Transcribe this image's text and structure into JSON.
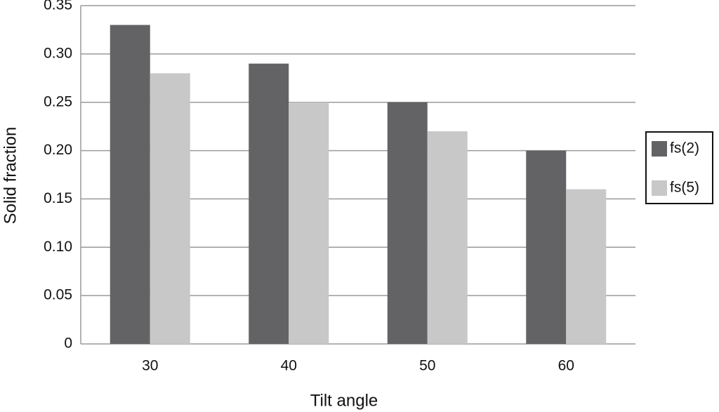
{
  "chart_data": {
    "type": "bar",
    "x_label": "Tilt angle",
    "y_label": "Solid fraction",
    "categories": [
      "30",
      "40",
      "50",
      "60"
    ],
    "series": [
      {
        "name": "fs(2)",
        "color": "#636366",
        "values": [
          0.33,
          0.29,
          0.25,
          0.2
        ]
      },
      {
        "name": "fs(5)",
        "color": "#c8c8c8",
        "values": [
          0.28,
          0.25,
          0.22,
          0.16
        ]
      }
    ],
    "ylim": [
      0,
      0.35
    ],
    "yticks": [
      0,
      0.05,
      {
        "value": 0.1,
        "label": "0.10"
      },
      0.15,
      {
        "value": 0.2,
        "label": "0.20"
      },
      0.25,
      {
        "value": 0.3,
        "label": "0.30"
      },
      0.35
    ],
    "grid": true,
    "legend": "right"
  }
}
